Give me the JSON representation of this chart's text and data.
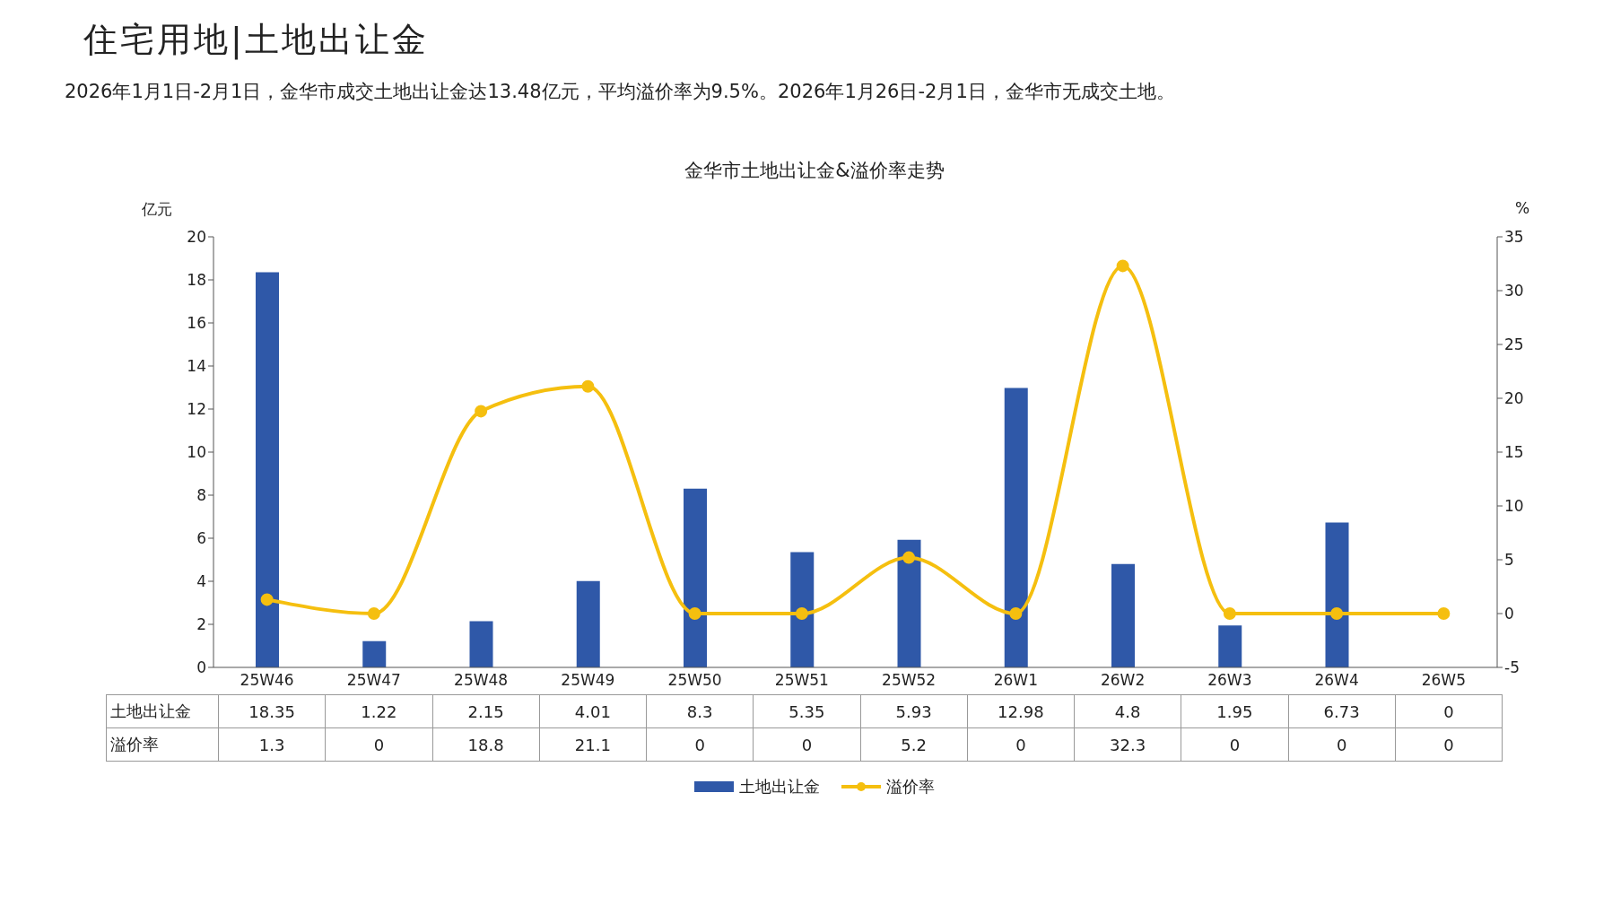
{
  "chart_data": {
    "type": "bar",
    "title": "住宅用地|土地出让金",
    "subtitle": "金华市土地出让金&溢价率走势",
    "annotations": [
      "2026年1月1日-2月1日，金华市成交土地出让金达13.48亿元，平均溢价率为9.5%。2026年1月26日-2月1日，金华市无成交土地。"
    ],
    "ylabel": "亿元",
    "y2label": "%",
    "categories": [
      "25W46",
      "25W47",
      "25W48",
      "25W49",
      "25W50",
      "25W51",
      "25W52",
      "26W1",
      "26W2",
      "26W3",
      "26W4",
      "26W5"
    ],
    "series": [
      {
        "name": "土地出让金",
        "color": "#2f58a8",
        "values": [
          18.35,
          1.22,
          2.15,
          4.01,
          8.3,
          5.35,
          5.93,
          12.98,
          4.8,
          1.95,
          6.73,
          0
        ]
      },
      {
        "name": "溢价率",
        "type": "line",
        "axis": "y2",
        "color": "#f5bf0f",
        "values": [
          1.3,
          0,
          18.8,
          21.1,
          0,
          0,
          5.2,
          0,
          32.3,
          0,
          0,
          0
        ]
      }
    ],
    "ylim": [
      0,
      20
    ],
    "yticks": [
      0,
      2,
      4,
      6,
      8,
      10,
      12,
      14,
      16,
      18,
      20
    ],
    "y2lim": [
      -5,
      35
    ],
    "y2ticks": [
      -5,
      0,
      5,
      10,
      15,
      20,
      25,
      30,
      35
    ],
    "data_labels": true,
    "legend": "bottom",
    "marker": "circle",
    "line_style": "solid"
  }
}
